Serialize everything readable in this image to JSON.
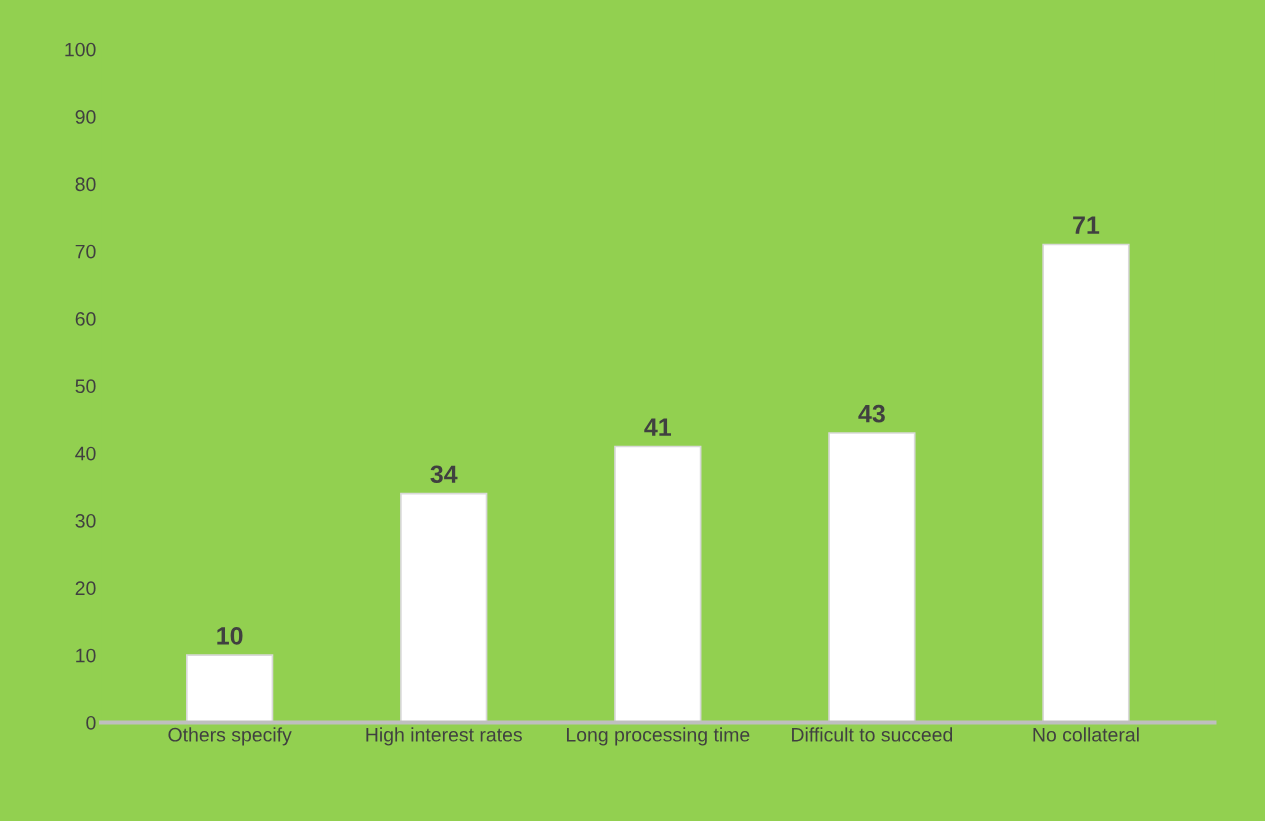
{
  "chart_data": {
    "type": "bar",
    "categories": [
      "Others specify",
      "High interest rates",
      "Long processing time",
      "Difficult to succeed",
      "No collateral"
    ],
    "values": [
      10,
      34,
      41,
      43,
      71
    ],
    "color": "#ffffff",
    "ylim": [
      0,
      100
    ],
    "yticks": [
      0,
      10,
      20,
      30,
      40,
      50,
      60,
      70,
      80,
      90,
      100
    ],
    "grid": false,
    "data_labels": true
  }
}
